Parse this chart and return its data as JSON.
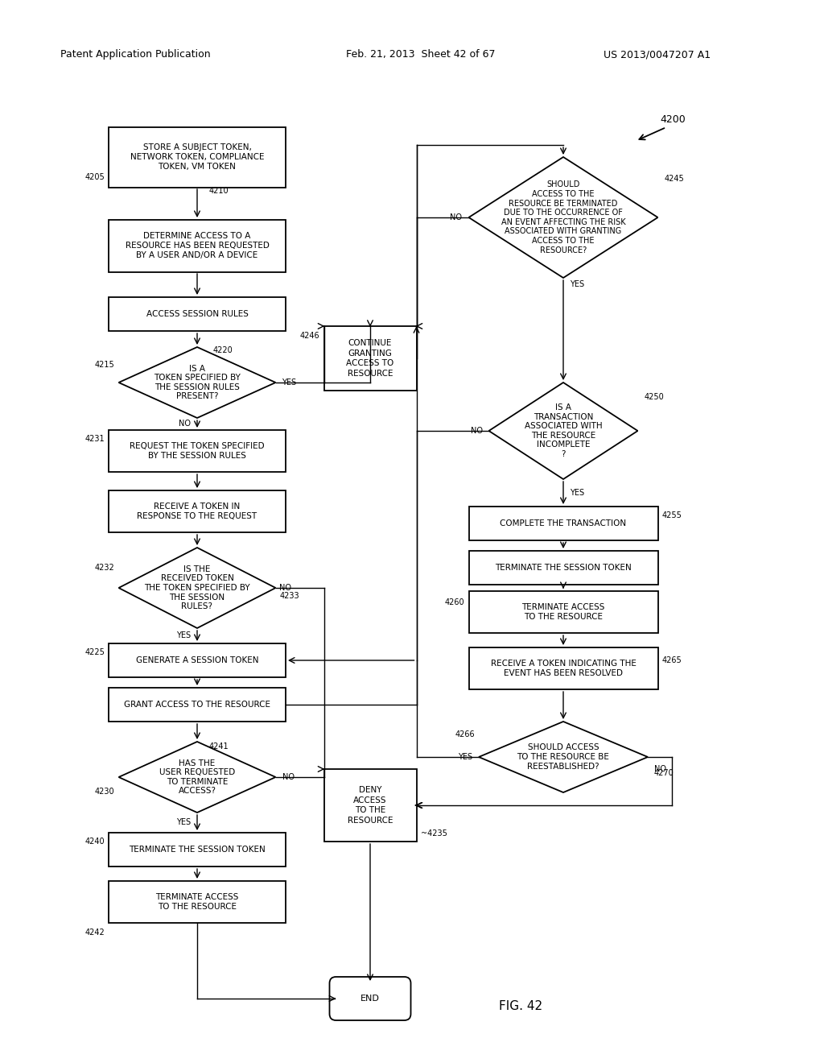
{
  "header_left": "Patent Application Publication",
  "header_center": "Feb. 21, 2013  Sheet 42 of 67",
  "header_right": "US 2013/0047207 A1",
  "fig_label": "FIG. 42",
  "bg": "#ffffff"
}
